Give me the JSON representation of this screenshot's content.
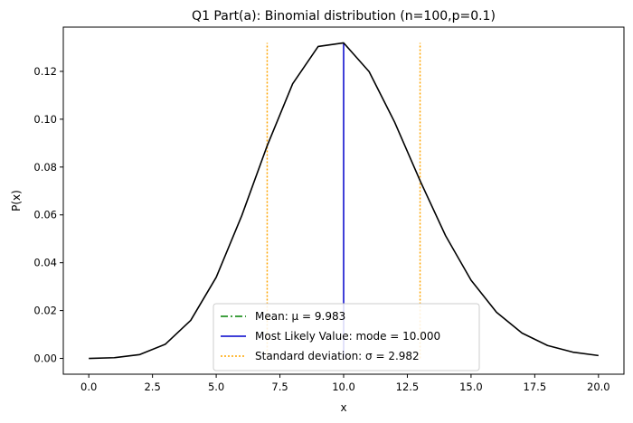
{
  "chart_data": {
    "type": "line",
    "title": "Q1 Part(a): Binomial distribution (n=100,p=0.1)",
    "xlabel": "x",
    "ylabel": "P(x)",
    "xlim": [
      -1.0,
      21.0
    ],
    "ylim": [
      -0.0066,
      0.1385
    ],
    "xticks": [
      0.0,
      2.5,
      5.0,
      7.5,
      10.0,
      12.5,
      15.0,
      17.5,
      20.0
    ],
    "xtick_labels": [
      "0.0",
      "2.5",
      "5.0",
      "7.5",
      "10.0",
      "12.5",
      "15.0",
      "17.5",
      "20.0"
    ],
    "yticks": [
      0.0,
      0.02,
      0.04,
      0.06,
      0.08,
      0.1,
      0.12
    ],
    "ytick_labels": [
      "0.00",
      "0.02",
      "0.04",
      "0.06",
      "0.08",
      "0.10",
      "0.12"
    ],
    "grid": false,
    "legend_position": "lower-center",
    "series": [
      {
        "color": "#000000",
        "style": "solid",
        "x": [
          0,
          1,
          2,
          3,
          4,
          5,
          6,
          7,
          8,
          9,
          10,
          11,
          12,
          13,
          14,
          15,
          16,
          17,
          18,
          19,
          20
        ],
        "y": [
          0.0,
          0.0003,
          0.0016,
          0.0059,
          0.0159,
          0.0339,
          0.0596,
          0.0889,
          0.1148,
          0.1304,
          0.1319,
          0.1199,
          0.0988,
          0.0743,
          0.0513,
          0.0327,
          0.0193,
          0.0106,
          0.0054,
          0.0026,
          0.0012
        ]
      }
    ],
    "reference_lines": [
      {
        "legend": "Mean: μ = 9.983",
        "color": "#008000",
        "style": "dashdot",
        "x": 9.983,
        "y": [
          0,
          0.0
        ],
        "in_legend": true
      },
      {
        "legend": "Most Likely Value: mode = 10.000",
        "color": "#0000cc",
        "style": "solid",
        "x": 10.0,
        "y": [
          0,
          0.1319
        ]
      },
      {
        "legend": "Standard deviation: σ = 2.982",
        "color": "#ffa500",
        "style": "dotted",
        "x": 7.0,
        "y": [
          0,
          0.1319
        ]
      },
      {
        "legend": "",
        "color": "#ffa500",
        "style": "dotted",
        "x": 13.0,
        "y": [
          0,
          0.1319
        ]
      }
    ],
    "legend": [
      {
        "label": "Mean: μ = 9.983",
        "color": "#008000",
        "style": "dashdot"
      },
      {
        "label": "Most Likely Value: mode = 10.000",
        "color": "#0000cc",
        "style": "solid"
      },
      {
        "label": "Standard deviation: σ = 2.982",
        "color": "#ffa500",
        "style": "dotted"
      }
    ]
  }
}
